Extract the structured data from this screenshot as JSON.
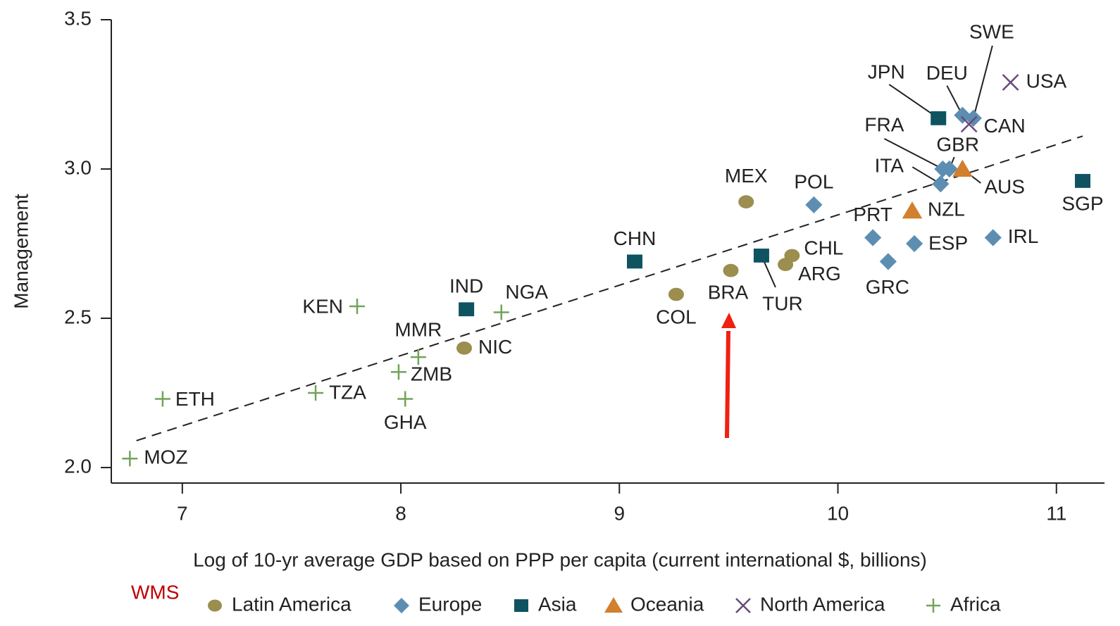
{
  "chart_data": {
    "type": "scatter",
    "xlabel": "Log of 10-yr average GDP based on PPP per capita (current international $, billions)",
    "ylabel": "Management",
    "annotation": "WMS",
    "xlim": [
      6.675,
      11.22
    ],
    "xticks": [
      7,
      8,
      9,
      10,
      11
    ],
    "ylim": [
      1.948,
      3.5
    ],
    "yticks": [
      {
        "value": 2.0,
        "label": "2.0"
      },
      2.5,
      {
        "value": 3.0,
        "label": "3.0"
      },
      3.5
    ],
    "trendline": {
      "x": [
        6.79,
        11.12
      ],
      "values": [
        2.09,
        3.11
      ]
    },
    "series": [
      {
        "name": "Latin America",
        "color": "#9b8e4e",
        "marker": "circle",
        "labels": [
          "MEX",
          "COL",
          "BRA",
          "CHL",
          "ARG",
          "NIC"
        ],
        "x": [
          9.58,
          9.26,
          9.51,
          9.79,
          9.76,
          8.29
        ],
        "values": [
          2.89,
          2.58,
          2.66,
          2.71,
          2.68,
          2.4
        ]
      },
      {
        "name": "Europe",
        "color": "#5d8eb2",
        "marker": "diamond",
        "labels": [
          "SWE",
          "DEU",
          "FRA",
          "GBR",
          "ITA",
          "POL",
          "PRT",
          "ESP",
          "GRC",
          "IRL"
        ],
        "x": [
          10.62,
          10.57,
          10.48,
          10.51,
          10.47,
          9.89,
          10.16,
          10.35,
          10.23,
          10.71
        ],
        "values": [
          3.17,
          3.18,
          3.0,
          3.0,
          2.95,
          2.88,
          2.77,
          2.75,
          2.69,
          2.77
        ]
      },
      {
        "name": "Asia",
        "color": "#0f5361",
        "marker": "square",
        "labels": [
          "JPN",
          "SGP",
          "CHN",
          "TUR",
          "IND"
        ],
        "x": [
          10.46,
          11.12,
          9.07,
          9.65,
          8.3
        ],
        "values": [
          3.17,
          2.96,
          2.69,
          2.71,
          2.53
        ]
      },
      {
        "name": "Oceania",
        "color": "#d27f2e",
        "marker": "triangle",
        "labels": [
          "AUS",
          "NZL"
        ],
        "x": [
          10.57,
          10.34
        ],
        "values": [
          3.0,
          2.86
        ]
      },
      {
        "name": "North America",
        "color": "#6a4a78",
        "marker": "x",
        "labels": [
          "USA",
          "CAN"
        ],
        "x": [
          10.79,
          10.6
        ],
        "values": [
          3.29,
          3.15
        ]
      },
      {
        "name": "Africa",
        "color": "#72a35a",
        "marker": "plus",
        "labels": [
          "KEN",
          "NGA",
          "MMR",
          "ZMB",
          "GHA",
          "TZA",
          "ETH",
          "MOZ"
        ],
        "x": [
          7.8,
          8.46,
          8.08,
          7.99,
          8.02,
          7.61,
          6.91,
          6.76
        ],
        "values": [
          2.54,
          2.52,
          2.37,
          2.32,
          2.23,
          2.25,
          2.23,
          2.03
        ]
      }
    ]
  }
}
